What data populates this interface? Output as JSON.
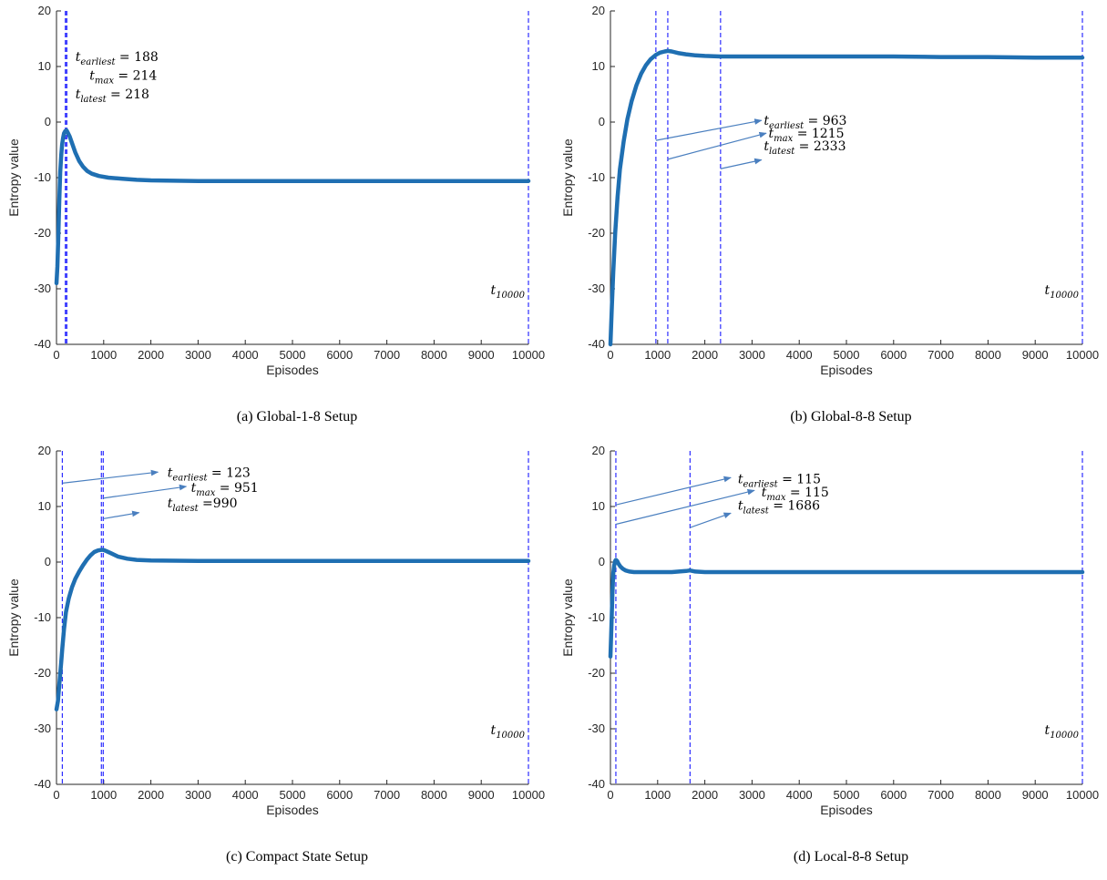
{
  "chart_data": [
    {
      "type": "line",
      "caption": "(a) Global-1-8 Setup",
      "xlabel": "Episodes",
      "ylabel": "Entropy value",
      "xlim": [
        0,
        10000
      ],
      "ylim": [
        -40,
        20
      ],
      "xticks": [
        0,
        1000,
        2000,
        3000,
        4000,
        5000,
        6000,
        7000,
        8000,
        9000,
        10000
      ],
      "yticks": [
        20,
        10,
        0,
        -10,
        -20,
        -30,
        -40
      ],
      "series_color": "#1f6fb2",
      "vline_color": "#1a1aff",
      "series": [
        {
          "x": [
            0,
            20,
            40,
            60,
            80,
            100,
            120,
            140,
            160,
            188,
            214,
            240,
            280,
            330,
            400,
            480,
            560,
            650,
            750,
            900,
            1100,
            1400,
            1700,
            2000,
            3000,
            4000,
            5000,
            6000,
            7000,
            8000,
            9000,
            10000
          ],
          "y": [
            -29,
            -26,
            -20,
            -14,
            -9,
            -6,
            -4,
            -2.8,
            -2,
            -1.6,
            -1.5,
            -1.9,
            -2.6,
            -3.8,
            -5.5,
            -7,
            -8,
            -8.8,
            -9.3,
            -9.7,
            -10,
            -10.2,
            -10.4,
            -10.5,
            -10.6,
            -10.6,
            -10.6,
            -10.6,
            -10.6,
            -10.6,
            -10.6,
            -10.6
          ]
        }
      ],
      "vlines": [
        188,
        214,
        218,
        10000
      ],
      "annotations": [
        {
          "sym": "t",
          "sub": "earliest",
          "eq": " = 188",
          "x": 400,
          "y": 11
        },
        {
          "sym": "t",
          "sub": "max",
          "eq": " = 214",
          "x": 700,
          "y": 7.6
        },
        {
          "sym": "t",
          "sub": "latest",
          "eq": " = 218",
          "x": 400,
          "y": 4.3
        },
        {
          "sym": "t",
          "sub": "10000",
          "eq": "",
          "x": 9200,
          "y": -31
        }
      ],
      "arrows": []
    },
    {
      "type": "line",
      "caption": "(b) Global-8-8 Setup",
      "xlabel": "Episodes",
      "ylabel": "Entropy value",
      "xlim": [
        0,
        10000
      ],
      "ylim": [
        -40,
        20
      ],
      "xticks": [
        0,
        1000,
        2000,
        3000,
        4000,
        5000,
        6000,
        7000,
        8000,
        9000,
        10000
      ],
      "yticks": [
        20,
        10,
        0,
        -10,
        -20,
        -30,
        -40
      ],
      "series_color": "#1f6fb2",
      "vline_color": "#1a1aff",
      "series": [
        {
          "x": [
            0,
            30,
            60,
            100,
            150,
            200,
            280,
            360,
            450,
            550,
            650,
            750,
            850,
            963,
            1050,
            1150,
            1215,
            1300,
            1450,
            1600,
            1800,
            2000,
            2333,
            3000,
            4000,
            5000,
            6000,
            7000,
            8000,
            9000,
            10000
          ],
          "y": [
            -40,
            -33,
            -27,
            -20,
            -13.5,
            -8.5,
            -3.5,
            0.5,
            3.8,
            6.6,
            8.7,
            10.2,
            11.3,
            12.1,
            12.5,
            12.7,
            12.8,
            12.7,
            12.4,
            12.2,
            12,
            11.9,
            11.8,
            11.8,
            11.8,
            11.8,
            11.8,
            11.7,
            11.7,
            11.6,
            11.6
          ]
        }
      ],
      "vlines": [
        963,
        1215,
        2333,
        10000
      ],
      "annotations": [
        {
          "sym": "t",
          "sub": "earliest",
          "eq": " = 963",
          "x": 3250,
          "y": -0.5
        },
        {
          "sym": "t",
          "sub": "max",
          "eq": " = 1215",
          "x": 3350,
          "y": -2.8
        },
        {
          "sym": "t",
          "sub": "latest",
          "eq": " = 2333",
          "x": 3250,
          "y": -5.1
        },
        {
          "sym": "t",
          "sub": "10000",
          "eq": "",
          "x": 9200,
          "y": -31
        }
      ],
      "arrows": [
        {
          "x1": 963,
          "y1": -3.3,
          "x2": 3200,
          "y2": 0.3
        },
        {
          "x1": 1215,
          "y1": -6.7,
          "x2": 3300,
          "y2": -2
        },
        {
          "x1": 2333,
          "y1": -8.4,
          "x2": 3200,
          "y2": -6.8
        }
      ]
    },
    {
      "type": "line",
      "caption": "(c) Compact State Setup",
      "xlabel": "Episodes",
      "ylabel": "Entropy value",
      "xlim": [
        0,
        10000
      ],
      "ylim": [
        -40,
        20
      ],
      "xticks": [
        0,
        1000,
        2000,
        3000,
        4000,
        5000,
        6000,
        7000,
        8000,
        9000,
        10000
      ],
      "yticks": [
        20,
        10,
        0,
        -10,
        -20,
        -30,
        -40
      ],
      "series_color": "#1f6fb2",
      "vline_color": "#1a1aff",
      "series": [
        {
          "x": [
            0,
            30,
            60,
            100,
            123,
            160,
            200,
            260,
            330,
            400,
            480,
            560,
            640,
            720,
            800,
            880,
            951,
            990,
            1050,
            1150,
            1300,
            1500,
            1700,
            2000,
            3000,
            4000,
            5000,
            6000,
            7000,
            8000,
            9000,
            10000
          ],
          "y": [
            -26.5,
            -25,
            -22,
            -18,
            -15.5,
            -12,
            -9,
            -6.5,
            -4.5,
            -3,
            -1.7,
            -0.6,
            0.4,
            1.2,
            1.8,
            2.1,
            2.2,
            2.2,
            2,
            1.6,
            1,
            0.6,
            0.4,
            0.3,
            0.2,
            0.2,
            0.2,
            0.2,
            0.2,
            0.2,
            0.2,
            0.2
          ]
        }
      ],
      "vlines": [
        123,
        951,
        990,
        10000
      ],
      "annotations": [
        {
          "sym": "t",
          "sub": "earliest",
          "eq": " = 123",
          "x": 2350,
          "y": 15.3
        },
        {
          "sym": "t",
          "sub": "max",
          "eq": " = 951",
          "x": 2850,
          "y": 12.6
        },
        {
          "sym": "t",
          "sub": "latest",
          "eq": " =990",
          "x": 2350,
          "y": 9.8
        },
        {
          "sym": "t",
          "sub": "10000",
          "eq": "",
          "x": 9200,
          "y": -31
        }
      ],
      "arrows": [
        {
          "x1": 123,
          "y1": 14.2,
          "x2": 2150,
          "y2": 16.2
        },
        {
          "x1": 990,
          "y1": 11.5,
          "x2": 2750,
          "y2": 13.6
        },
        {
          "x1": 990,
          "y1": 7.8,
          "x2": 1750,
          "y2": 8.9
        }
      ]
    },
    {
      "type": "line",
      "caption": "(d) Local-8-8 Setup",
      "xlabel": "Episodes",
      "ylabel": "Entropy value",
      "xlim": [
        0,
        10000
      ],
      "ylim": [
        -40,
        20
      ],
      "xticks": [
        0,
        1000,
        2000,
        3000,
        4000,
        5000,
        6000,
        7000,
        8000,
        9000,
        10000
      ],
      "yticks": [
        20,
        10,
        0,
        -10,
        -20,
        -30,
        -40
      ],
      "series_color": "#1f6fb2",
      "vline_color": "#1a1aff",
      "series": [
        {
          "x": [
            0,
            20,
            40,
            60,
            80,
            100,
            115,
            140,
            170,
            210,
            260,
            320,
            400,
            500,
            650,
            800,
            1000,
            1300,
            1600,
            1686,
            1800,
            2000,
            3000,
            4000,
            5000,
            6000,
            7000,
            8000,
            9000,
            10000
          ],
          "y": [
            -17,
            -12,
            -6,
            -2,
            -0.6,
            0.2,
            0.4,
            0.2,
            -0.3,
            -0.8,
            -1.2,
            -1.5,
            -1.7,
            -1.8,
            -1.8,
            -1.8,
            -1.8,
            -1.8,
            -1.6,
            -1.5,
            -1.7,
            -1.8,
            -1.8,
            -1.8,
            -1.8,
            -1.8,
            -1.8,
            -1.8,
            -1.8,
            -1.8
          ]
        }
      ],
      "vlines": [
        115,
        1686,
        10000
      ],
      "annotations": [
        {
          "sym": "t",
          "sub": "earliest",
          "eq": " = 115",
          "x": 2700,
          "y": 14.2
        },
        {
          "sym": "t",
          "sub": "max",
          "eq": " = 115",
          "x": 3200,
          "y": 11.8
        },
        {
          "sym": "t",
          "sub": "latest",
          "eq": " = 1686",
          "x": 2700,
          "y": 9.4
        },
        {
          "sym": "t",
          "sub": "10000",
          "eq": "",
          "x": 9200,
          "y": -31
        }
      ],
      "arrows": [
        {
          "x1": 115,
          "y1": 10.3,
          "x2": 2550,
          "y2": 15.2
        },
        {
          "x1": 115,
          "y1": 6.8,
          "x2": 3050,
          "y2": 12.9
        },
        {
          "x1": 1686,
          "y1": 6.2,
          "x2": 2550,
          "y2": 8.8
        }
      ]
    }
  ]
}
